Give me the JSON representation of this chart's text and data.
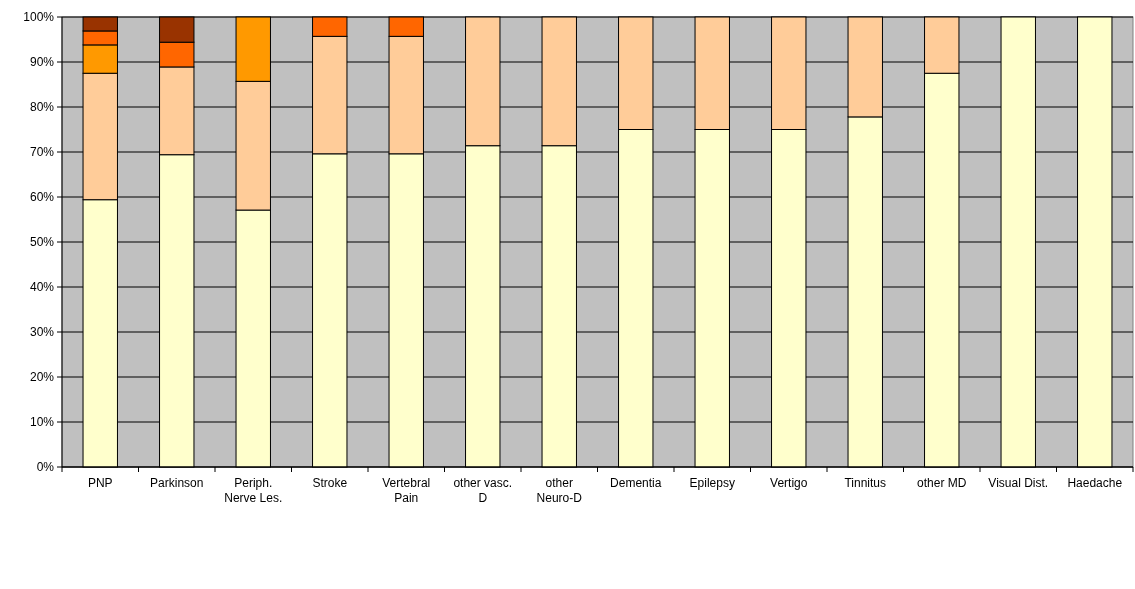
{
  "chart_data": {
    "type": "bar",
    "stacked": true,
    "categories": [
      "PNP",
      "Parkinson",
      "Periph. Nerve Les.",
      "Stroke",
      "Vertebral Pain",
      "other vasc. D",
      "other Neuro-D",
      "Dementia",
      "Epilepsy",
      "Vertigo",
      "Tinnitus",
      "other MD",
      "Visual Dist.",
      "Haedache"
    ],
    "series": [
      {
        "color": "#ffffcc",
        "values": [
          59.4,
          69.4,
          57.1,
          69.6,
          69.6,
          71.4,
          71.4,
          75,
          75,
          75,
          77.8,
          87.5,
          100,
          100
        ]
      },
      {
        "color": "#ffcc99",
        "values": [
          28.1,
          19.5,
          28.6,
          26.1,
          26.1,
          28.6,
          28.6,
          25,
          25,
          25,
          22.2,
          12.5,
          null,
          null
        ]
      },
      {
        "color": "#ff9900",
        "values": [
          6.3,
          null,
          14.3,
          null,
          null,
          null,
          null,
          null,
          null,
          null,
          null,
          null,
          null,
          null
        ]
      },
      {
        "color": "#ff6600",
        "values": [
          3.1,
          5.5,
          null,
          4.3,
          4.3,
          null,
          null,
          null,
          null,
          null,
          null,
          null,
          null,
          null
        ]
      },
      {
        "color": "#993300",
        "values": [
          3.1,
          5.6,
          null,
          null,
          null,
          null,
          null,
          null,
          null,
          null,
          null,
          null,
          null,
          null
        ]
      }
    ],
    "ylim": [
      0,
      100
    ],
    "yticks": [
      {
        "value": 0,
        "label": "0%"
      },
      {
        "value": 10,
        "label": "10%"
      },
      {
        "value": 20,
        "label": "20%"
      },
      {
        "value": 30,
        "label": "30%"
      },
      {
        "value": 40,
        "label": "40%"
      },
      {
        "value": 50,
        "label": "50%"
      },
      {
        "value": 60,
        "label": "60%"
      },
      {
        "value": 70,
        "label": "70%"
      },
      {
        "value": 80,
        "label": "80%"
      },
      {
        "value": 90,
        "label": "90%"
      },
      {
        "value": 100,
        "label": "100%"
      }
    ],
    "grid": "y"
  }
}
